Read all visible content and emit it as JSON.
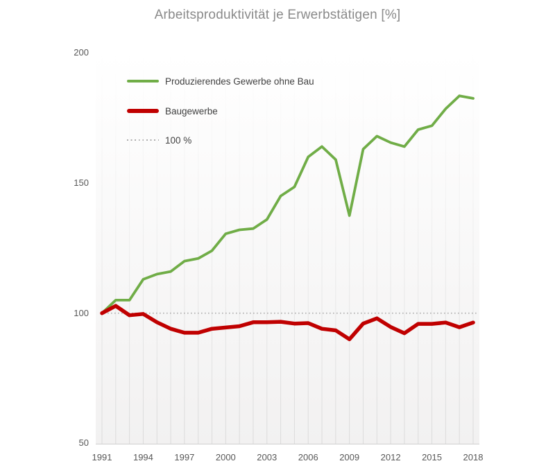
{
  "title": "Arbeitsproduktivität je Erwerbstätigen [%]",
  "legend": {
    "items": [
      {
        "label": "Produzierendes Gewerbe ohne Bau",
        "color": "#70ad47",
        "style": "solid"
      },
      {
        "label": "Baugewerbe",
        "color": "#c00000",
        "style": "solid"
      },
      {
        "label": "100 %",
        "color": "#ababab",
        "style": "dotted"
      }
    ]
  },
  "chart_data": {
    "type": "line",
    "title": "Arbeitsproduktivität je Erwerbstätigen [%]",
    "x": [
      1991,
      1992,
      1993,
      1994,
      1995,
      1996,
      1997,
      1998,
      1999,
      2000,
      2001,
      2002,
      2003,
      2004,
      2005,
      2006,
      2007,
      2008,
      2009,
      2010,
      2011,
      2012,
      2013,
      2014,
      2015,
      2016,
      2017,
      2018
    ],
    "series": [
      {
        "name": "Produzierendes Gewerbe ohne Bau",
        "color": "#70ad47",
        "width": 3.8,
        "values": [
          100,
          105,
          105,
          113,
          115,
          116,
          120,
          121,
          124,
          130.5,
          132,
          132.5,
          136,
          145,
          148.5,
          160,
          164,
          159,
          137.5,
          163,
          168,
          165.5,
          164,
          170.5,
          172,
          178.5,
          183.5,
          182.5
        ]
      },
      {
        "name": "Baugewerbe",
        "color": "#c00000",
        "width": 5.5,
        "values": [
          100,
          102.8,
          99.2,
          99.7,
          96.5,
          94,
          92.5,
          92.5,
          94,
          94.5,
          95,
          96.5,
          96.5,
          96.7,
          96,
          96.2,
          94,
          93.4,
          90,
          96,
          98,
          94.7,
          92.3,
          95.9,
          95.9,
          96.4,
          94.6,
          96.4
        ]
      }
    ],
    "reference_line": {
      "label": "100 %",
      "value": 100,
      "style": "dotted",
      "color": "#ababab"
    },
    "ylim": [
      50,
      200
    ],
    "yticks": [
      200,
      150,
      100,
      50
    ],
    "xticks": [
      1991,
      1994,
      1997,
      2000,
      2003,
      2006,
      2009,
      2012,
      2015,
      2018
    ],
    "grid": "vertical-per-year",
    "legend_position": "top-left-inside",
    "plot_background": {
      "top_color": "#ffffff",
      "bottom_color": "#f2f1f1"
    }
  }
}
